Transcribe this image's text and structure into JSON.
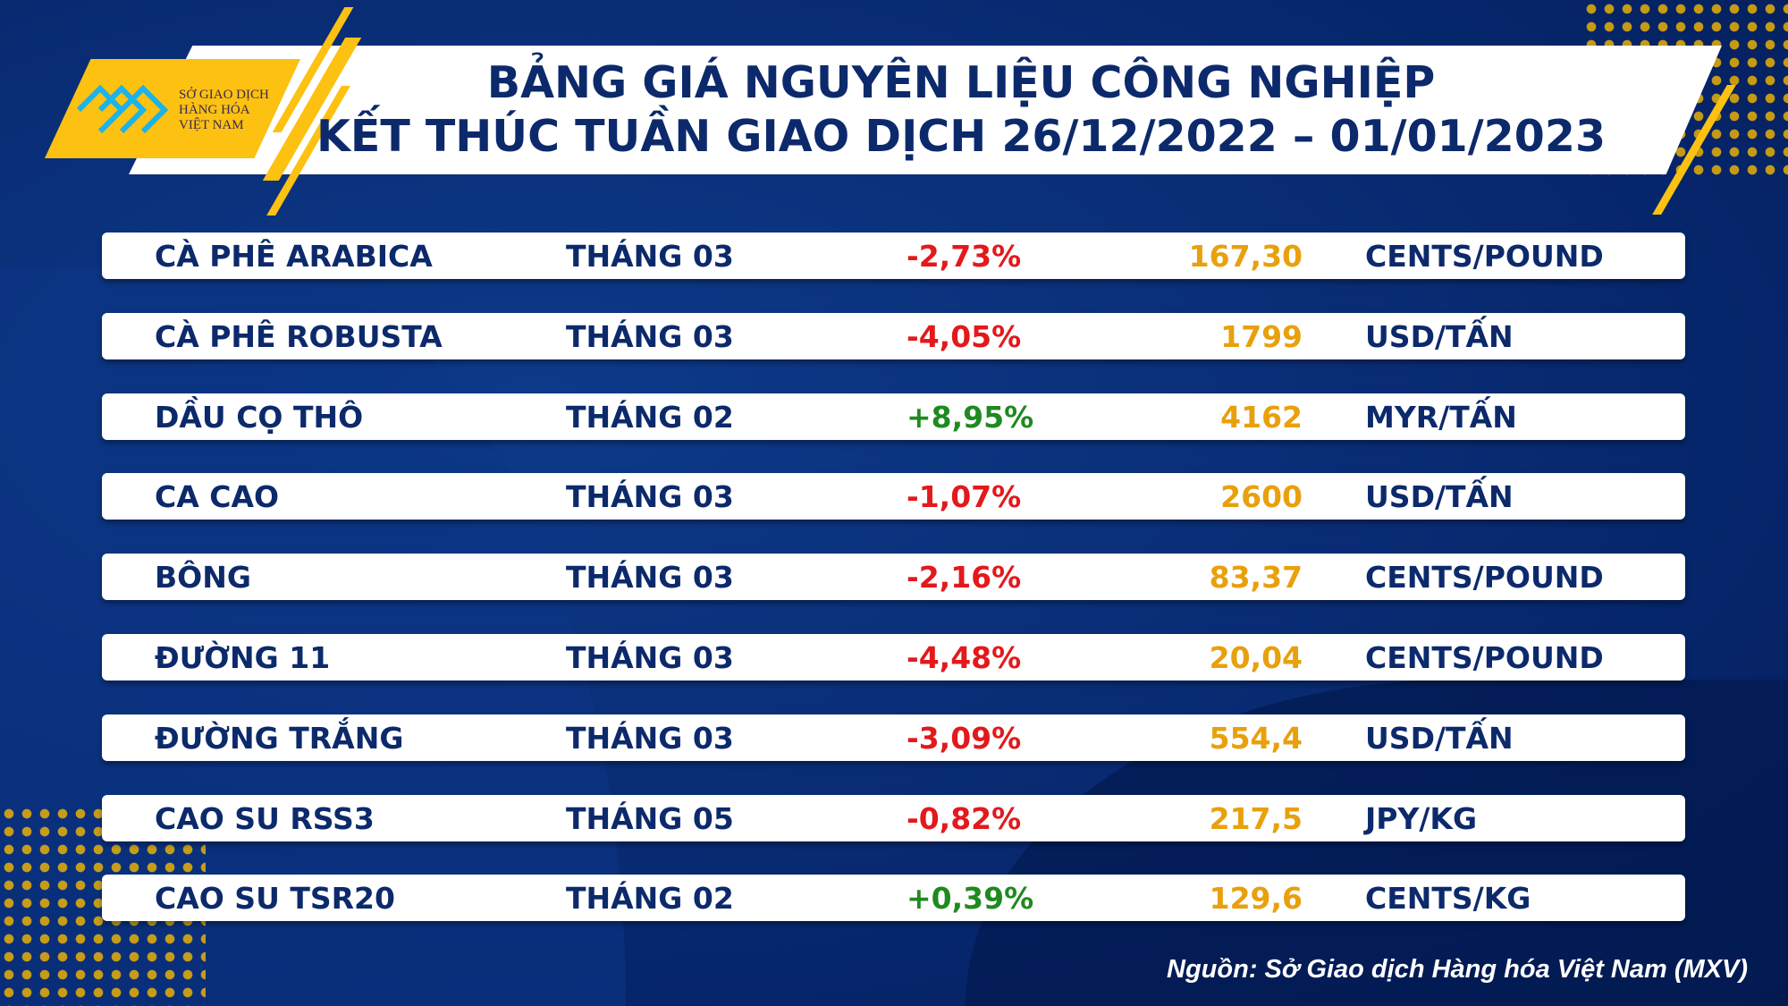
{
  "logo": {
    "line1": "SỞ GIAO DỊCH",
    "line2": "HÀNG HÓA",
    "line3": "VIỆT NAM"
  },
  "header": {
    "title_line1": "BẢNG GIÁ NGUYÊN LIỆU CÔNG NGHIỆP",
    "title_line2": "KẾT THÚC TUẦN GIAO DỊCH 26/12/2022 – 01/01/2023"
  },
  "colors": {
    "negative": "#e3191c",
    "positive": "#1f8a1f",
    "price": "#e8a00c",
    "text": "#0c2a6b",
    "accent": "#fcc111"
  },
  "rows": [
    {
      "name": "CÀ PHÊ ARABICA",
      "month": "THÁNG 03",
      "change": "-2,73%",
      "price": "167,30",
      "unit": "CENTS/POUND"
    },
    {
      "name": "CÀ PHÊ ROBUSTA",
      "month": "THÁNG 03",
      "change": "-4,05%",
      "price": "1799",
      "unit": "USD/TẤN"
    },
    {
      "name": "DẦU CỌ THÔ",
      "month": "THÁNG 02",
      "change": "+8,95%",
      "price": "4162",
      "unit": "MYR/TẤN"
    },
    {
      "name": "CA CAO",
      "month": "THÁNG 03",
      "change": "-1,07%",
      "price": "2600",
      "unit": "USD/TẤN"
    },
    {
      "name": "BÔNG",
      "month": "THÁNG 03",
      "change": "-2,16%",
      "price": "83,37",
      "unit": "CENTS/POUND"
    },
    {
      "name": "ĐƯỜNG 11",
      "month": "THÁNG 03",
      "change": "-4,48%",
      "price": "20,04",
      "unit": "CENTS/POUND"
    },
    {
      "name": "ĐƯỜNG TRẮNG",
      "month": "THÁNG 03",
      "change": "-3,09%",
      "price": "554,4",
      "unit": "USD/TẤN"
    },
    {
      "name": "CAO SU RSS3",
      "month": "THÁNG 05",
      "change": "-0,82%",
      "price": "217,5",
      "unit": "JPY/KG"
    },
    {
      "name": "CAO SU TSR20",
      "month": "THÁNG 02",
      "change": "+0,39%",
      "price": "129,6",
      "unit": "CENTS/KG"
    }
  ],
  "source": "Nguồn: Sở Giao dịch Hàng hóa Việt Nam (MXV)"
}
